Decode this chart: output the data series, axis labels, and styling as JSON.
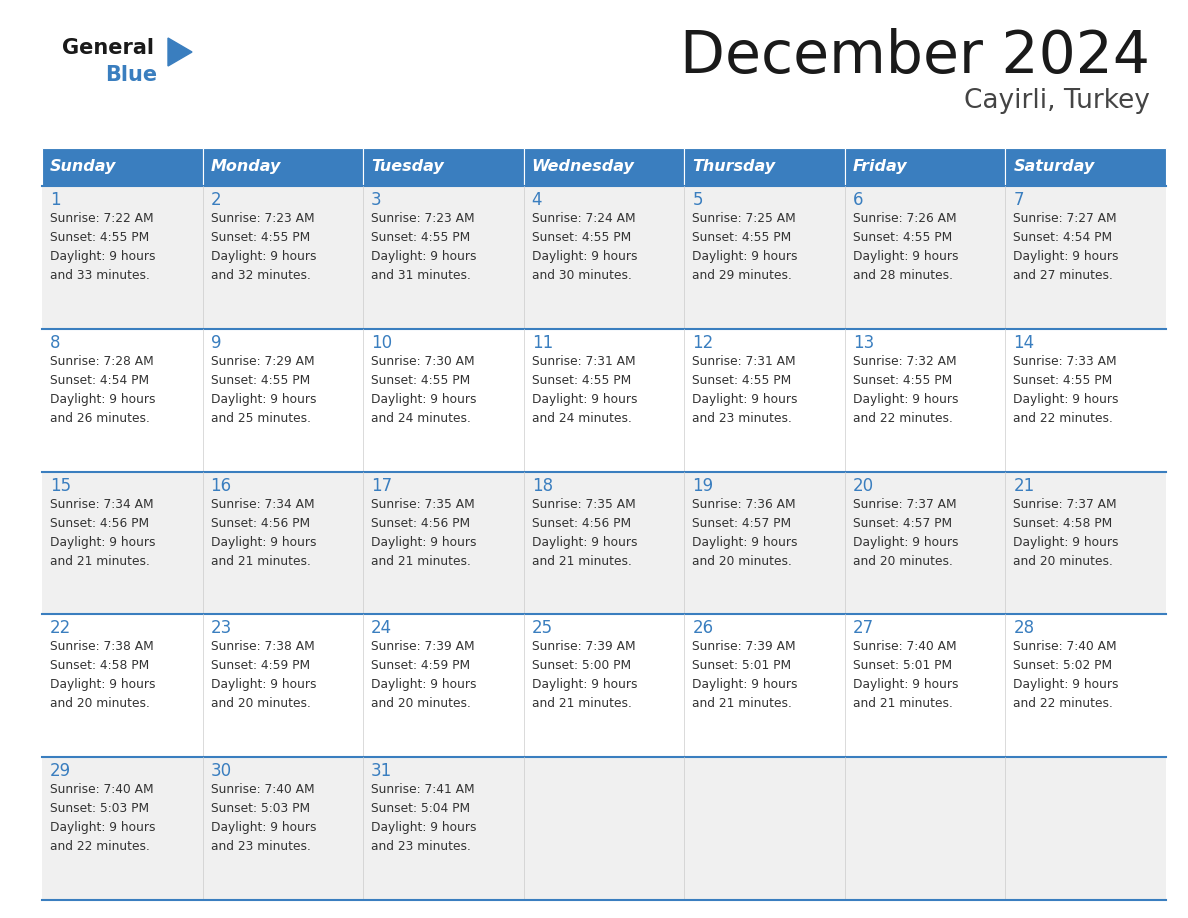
{
  "title": "December 2024",
  "subtitle": "Cayirli, Turkey",
  "days_of_week": [
    "Sunday",
    "Monday",
    "Tuesday",
    "Wednesday",
    "Thursday",
    "Friday",
    "Saturday"
  ],
  "header_bg": "#3a7ebf",
  "header_text_color": "#ffffff",
  "day_num_color": "#3a7ebf",
  "cell_text_color": "#333333",
  "bg_color": "#ffffff",
  "alt_row_bg": "#f0f0f0",
  "divider_color": "#3a7ebf",
  "title_color": "#1a1a1a",
  "subtitle_color": "#444444",
  "logo_general_color": "#1a1a1a",
  "logo_blue_color": "#3a7ebf",
  "calendar_data": [
    [
      {
        "day": 1,
        "sunrise": "7:22 AM",
        "sunset": "4:55 PM",
        "daylight": "9 hours and 33 minutes."
      },
      {
        "day": 2,
        "sunrise": "7:23 AM",
        "sunset": "4:55 PM",
        "daylight": "9 hours and 32 minutes."
      },
      {
        "day": 3,
        "sunrise": "7:23 AM",
        "sunset": "4:55 PM",
        "daylight": "9 hours and 31 minutes."
      },
      {
        "day": 4,
        "sunrise": "7:24 AM",
        "sunset": "4:55 PM",
        "daylight": "9 hours and 30 minutes."
      },
      {
        "day": 5,
        "sunrise": "7:25 AM",
        "sunset": "4:55 PM",
        "daylight": "9 hours and 29 minutes."
      },
      {
        "day": 6,
        "sunrise": "7:26 AM",
        "sunset": "4:55 PM",
        "daylight": "9 hours and 28 minutes."
      },
      {
        "day": 7,
        "sunrise": "7:27 AM",
        "sunset": "4:54 PM",
        "daylight": "9 hours and 27 minutes."
      }
    ],
    [
      {
        "day": 8,
        "sunrise": "7:28 AM",
        "sunset": "4:54 PM",
        "daylight": "9 hours and 26 minutes."
      },
      {
        "day": 9,
        "sunrise": "7:29 AM",
        "sunset": "4:55 PM",
        "daylight": "9 hours and 25 minutes."
      },
      {
        "day": 10,
        "sunrise": "7:30 AM",
        "sunset": "4:55 PM",
        "daylight": "9 hours and 24 minutes."
      },
      {
        "day": 11,
        "sunrise": "7:31 AM",
        "sunset": "4:55 PM",
        "daylight": "9 hours and 24 minutes."
      },
      {
        "day": 12,
        "sunrise": "7:31 AM",
        "sunset": "4:55 PM",
        "daylight": "9 hours and 23 minutes."
      },
      {
        "day": 13,
        "sunrise": "7:32 AM",
        "sunset": "4:55 PM",
        "daylight": "9 hours and 22 minutes."
      },
      {
        "day": 14,
        "sunrise": "7:33 AM",
        "sunset": "4:55 PM",
        "daylight": "9 hours and 22 minutes."
      }
    ],
    [
      {
        "day": 15,
        "sunrise": "7:34 AM",
        "sunset": "4:56 PM",
        "daylight": "9 hours and 21 minutes."
      },
      {
        "day": 16,
        "sunrise": "7:34 AM",
        "sunset": "4:56 PM",
        "daylight": "9 hours and 21 minutes."
      },
      {
        "day": 17,
        "sunrise": "7:35 AM",
        "sunset": "4:56 PM",
        "daylight": "9 hours and 21 minutes."
      },
      {
        "day": 18,
        "sunrise": "7:35 AM",
        "sunset": "4:56 PM",
        "daylight": "9 hours and 21 minutes."
      },
      {
        "day": 19,
        "sunrise": "7:36 AM",
        "sunset": "4:57 PM",
        "daylight": "9 hours and 20 minutes."
      },
      {
        "day": 20,
        "sunrise": "7:37 AM",
        "sunset": "4:57 PM",
        "daylight": "9 hours and 20 minutes."
      },
      {
        "day": 21,
        "sunrise": "7:37 AM",
        "sunset": "4:58 PM",
        "daylight": "9 hours and 20 minutes."
      }
    ],
    [
      {
        "day": 22,
        "sunrise": "7:38 AM",
        "sunset": "4:58 PM",
        "daylight": "9 hours and 20 minutes."
      },
      {
        "day": 23,
        "sunrise": "7:38 AM",
        "sunset": "4:59 PM",
        "daylight": "9 hours and 20 minutes."
      },
      {
        "day": 24,
        "sunrise": "7:39 AM",
        "sunset": "4:59 PM",
        "daylight": "9 hours and 20 minutes."
      },
      {
        "day": 25,
        "sunrise": "7:39 AM",
        "sunset": "5:00 PM",
        "daylight": "9 hours and 21 minutes."
      },
      {
        "day": 26,
        "sunrise": "7:39 AM",
        "sunset": "5:01 PM",
        "daylight": "9 hours and 21 minutes."
      },
      {
        "day": 27,
        "sunrise": "7:40 AM",
        "sunset": "5:01 PM",
        "daylight": "9 hours and 21 minutes."
      },
      {
        "day": 28,
        "sunrise": "7:40 AM",
        "sunset": "5:02 PM",
        "daylight": "9 hours and 22 minutes."
      }
    ],
    [
      {
        "day": 29,
        "sunrise": "7:40 AM",
        "sunset": "5:03 PM",
        "daylight": "9 hours and 22 minutes."
      },
      {
        "day": 30,
        "sunrise": "7:40 AM",
        "sunset": "5:03 PM",
        "daylight": "9 hours and 23 minutes."
      },
      {
        "day": 31,
        "sunrise": "7:41 AM",
        "sunset": "5:04 PM",
        "daylight": "9 hours and 23 minutes."
      },
      null,
      null,
      null,
      null
    ]
  ]
}
